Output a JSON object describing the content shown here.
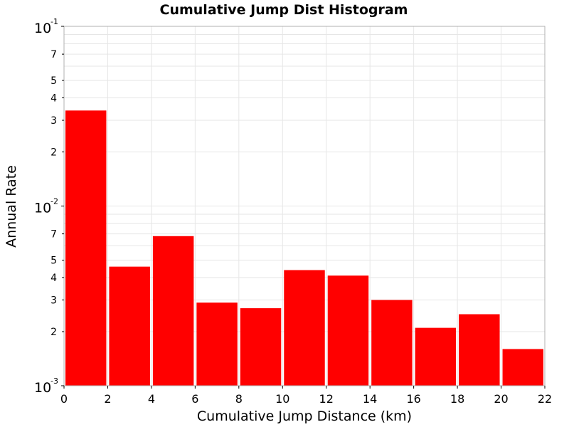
{
  "chart_data": {
    "type": "bar",
    "title": "Cumulative Jump Dist Histogram",
    "xlabel": "Cumulative Jump Distance (km)",
    "ylabel": "Annual Rate",
    "x_ticks": [
      "0",
      "2",
      "4",
      "6",
      "8",
      "10",
      "12",
      "14",
      "16",
      "18",
      "20",
      "22"
    ],
    "xlim": [
      0,
      22
    ],
    "ylim": [
      0.001,
      0.1
    ],
    "y_scale": "log",
    "y_major_ticks": [
      {
        "base": "10",
        "exp": "-3",
        "value": 0.001
      },
      {
        "base": "10",
        "exp": "-2",
        "value": 0.01
      },
      {
        "base": "10",
        "exp": "-1",
        "value": 0.1
      }
    ],
    "y_minor_tick_labels": [
      "2",
      "3",
      "4",
      "5",
      "7"
    ],
    "bin_width": 2,
    "bins": [
      {
        "x_start": 0,
        "x_end": 2,
        "value": 0.034
      },
      {
        "x_start": 2,
        "x_end": 4,
        "value": 0.0046
      },
      {
        "x_start": 4,
        "x_end": 6,
        "value": 0.0068
      },
      {
        "x_start": 6,
        "x_end": 8,
        "value": 0.0029
      },
      {
        "x_start": 8,
        "x_end": 10,
        "value": 0.0027
      },
      {
        "x_start": 10,
        "x_end": 12,
        "value": 0.0044
      },
      {
        "x_start": 12,
        "x_end": 14,
        "value": 0.0041
      },
      {
        "x_start": 14,
        "x_end": 16,
        "value": 0.003
      },
      {
        "x_start": 16,
        "x_end": 18,
        "value": 0.0021
      },
      {
        "x_start": 18,
        "x_end": 20,
        "value": 0.0025
      },
      {
        "x_start": 20,
        "x_end": 22,
        "value": 0.0016
      }
    ],
    "bar_color": "#ff0000",
    "grid": true,
    "grid_color": "#e6e6e6"
  }
}
